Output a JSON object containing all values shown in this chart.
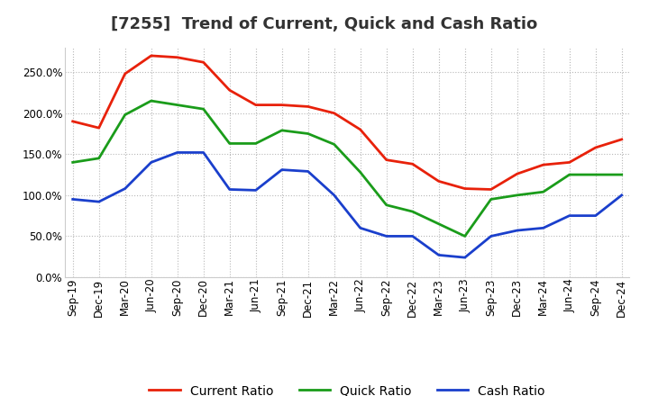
{
  "title": "[7255]  Trend of Current, Quick and Cash Ratio",
  "labels": [
    "Sep-19",
    "Dec-19",
    "Mar-20",
    "Jun-20",
    "Sep-20",
    "Dec-20",
    "Mar-21",
    "Jun-21",
    "Sep-21",
    "Dec-21",
    "Mar-22",
    "Jun-22",
    "Sep-22",
    "Dec-22",
    "Mar-23",
    "Jun-23",
    "Sep-23",
    "Dec-23",
    "Mar-24",
    "Jun-24",
    "Sep-24",
    "Dec-24"
  ],
  "current_ratio": [
    190,
    182,
    248,
    270,
    268,
    262,
    228,
    210,
    210,
    208,
    200,
    180,
    143,
    138,
    117,
    108,
    107,
    126,
    137,
    140,
    158,
    168
  ],
  "quick_ratio": [
    140,
    145,
    198,
    215,
    210,
    205,
    163,
    163,
    179,
    175,
    162,
    128,
    88,
    80,
    65,
    50,
    95,
    100,
    104,
    125,
    125,
    125
  ],
  "cash_ratio": [
    95,
    92,
    108,
    140,
    152,
    152,
    107,
    106,
    131,
    129,
    100,
    60,
    50,
    50,
    27,
    24,
    50,
    57,
    60,
    75,
    75,
    100
  ],
  "current_color": "#e8210a",
  "quick_color": "#1a9c1a",
  "cash_color": "#1a3fcc",
  "ylim": [
    0,
    280
  ],
  "yticks": [
    0,
    50,
    100,
    150,
    200,
    250
  ],
  "background_color": "#ffffff",
  "grid_color": "#b0b0b0",
  "legend_labels": [
    "Current Ratio",
    "Quick Ratio",
    "Cash Ratio"
  ],
  "title_fontsize": 13,
  "tick_fontsize": 8.5,
  "legend_fontsize": 10
}
